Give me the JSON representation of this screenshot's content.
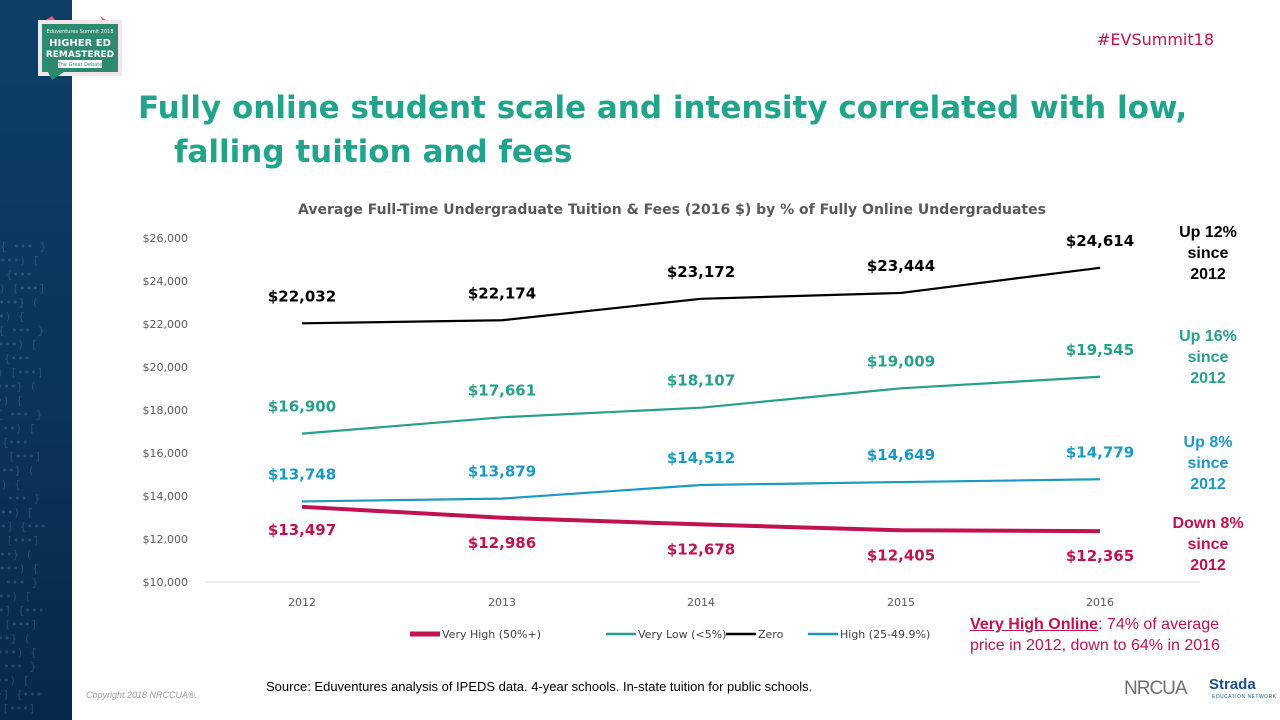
{
  "header": {
    "hashtag": "#EVSummit18",
    "logo": {
      "line1": "Eduventures Summit 2018",
      "line2": "HIGHER ED",
      "line3": "REMASTERED",
      "line4": "The Great Debate"
    }
  },
  "title": {
    "line1": "Fully online student scale and intensity correlated with low,",
    "line2": "falling tuition and fees"
  },
  "chart_data": {
    "type": "line",
    "title": "Average Full-Time Undergraduate Tuition & Fees (2016 $) by % of Fully Online Undergraduates",
    "x": [
      "2012",
      "2013",
      "2014",
      "2015",
      "2016"
    ],
    "ylim": [
      10000,
      26000
    ],
    "yticks": [
      10000,
      12000,
      14000,
      16000,
      18000,
      20000,
      22000,
      24000,
      26000
    ],
    "ytick_labels": [
      "$10,000",
      "$12,000",
      "$14,000",
      "$16,000",
      "$18,000",
      "$20,000",
      "$22,000",
      "$24,000",
      "$26,000"
    ],
    "grid": false,
    "legend_position": "bottom",
    "series": [
      {
        "name": "Very High (50%+)",
        "color": "#c0124f",
        "values": [
          13497,
          12986,
          12678,
          12405,
          12365
        ],
        "labels": [
          "$13,497",
          "$12,986",
          "$12,678",
          "$12,405",
          "$12,365"
        ]
      },
      {
        "name": "Very Low (<5%)",
        "color": "#26a08a",
        "values": [
          16900,
          17661,
          18107,
          19009,
          19545
        ],
        "labels": [
          "$16,900",
          "$17,661",
          "$18,107",
          "$19,009",
          "$19,545"
        ]
      },
      {
        "name": "Zero",
        "color": "#000000",
        "values": [
          22032,
          22174,
          23172,
          23444,
          24614
        ],
        "labels": [
          "$22,032",
          "$22,174",
          "$23,172",
          "$23,444",
          "$24,614"
        ]
      },
      {
        "name": "High (25-49.9%)",
        "color": "#1b98c4",
        "values": [
          13748,
          13879,
          14512,
          14649,
          14779
        ],
        "labels": [
          "$13,748",
          "$13,879",
          "$14,512",
          "$14,649",
          "$14,779"
        ]
      }
    ],
    "annotations": [
      {
        "series": "Zero",
        "lines": [
          "Up 12%",
          "since",
          "2012"
        ],
        "color": "#000000"
      },
      {
        "series": "Very Low (<5%)",
        "lines": [
          "Up 16%",
          "since",
          "2012"
        ],
        "color": "#26a08a"
      },
      {
        "series": "High (25-49.9%)",
        "lines": [
          "Up 8%",
          "since",
          "2012"
        ],
        "color": "#1b98c4"
      },
      {
        "series": "Very High (50%+)",
        "lines": [
          "Down 8%",
          "since",
          "2012"
        ],
        "color": "#c0124f"
      }
    ]
  },
  "callout": {
    "bold": "Very High Online",
    "rest_line1": ": 74% of average",
    "line2": "price in 2012, down to 64% in 2016"
  },
  "footer": {
    "source": "Source: Eduventures  analysis of IPEDS data. 4-year schools. In-state  tuition for public schools.",
    "copyright": "Copyright 2018 NRCCUA®.",
    "logo1": "NRCUA",
    "logo2": "Strada",
    "logo2_sub": "EDUCATION NETWORK"
  }
}
